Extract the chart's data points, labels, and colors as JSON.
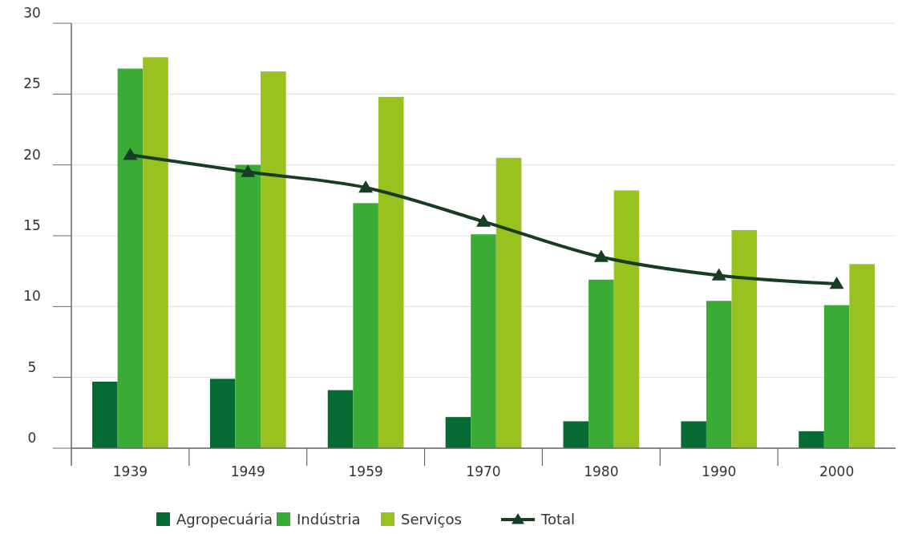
{
  "chart_data": {
    "type": "bar",
    "categories": [
      "1939",
      "1949",
      "1959",
      "1970",
      "1980",
      "1990",
      "2000"
    ],
    "series": [
      {
        "name": "Agropecuária",
        "color": "#056b32",
        "values": [
          4.7,
          4.9,
          4.1,
          2.2,
          1.9,
          1.9,
          1.2
        ]
      },
      {
        "name": "Indústria",
        "color": "#3aac35",
        "values": [
          26.8,
          20.0,
          17.3,
          15.1,
          11.9,
          10.4,
          10.1
        ]
      },
      {
        "name": "Serviços",
        "color": "#98c21f",
        "values": [
          27.6,
          26.6,
          24.8,
          20.5,
          18.2,
          15.4,
          13.0
        ]
      },
      {
        "name": "Total",
        "type": "line",
        "color": "#173d22",
        "marker": "triangle",
        "values": [
          20.7,
          19.5,
          18.4,
          16.0,
          13.5,
          12.2,
          11.6
        ]
      }
    ],
    "ylim": [
      0,
      30
    ],
    "yticks": [
      0,
      5,
      10,
      15,
      20,
      25,
      30
    ],
    "grid": "y",
    "legend": "bottom"
  }
}
